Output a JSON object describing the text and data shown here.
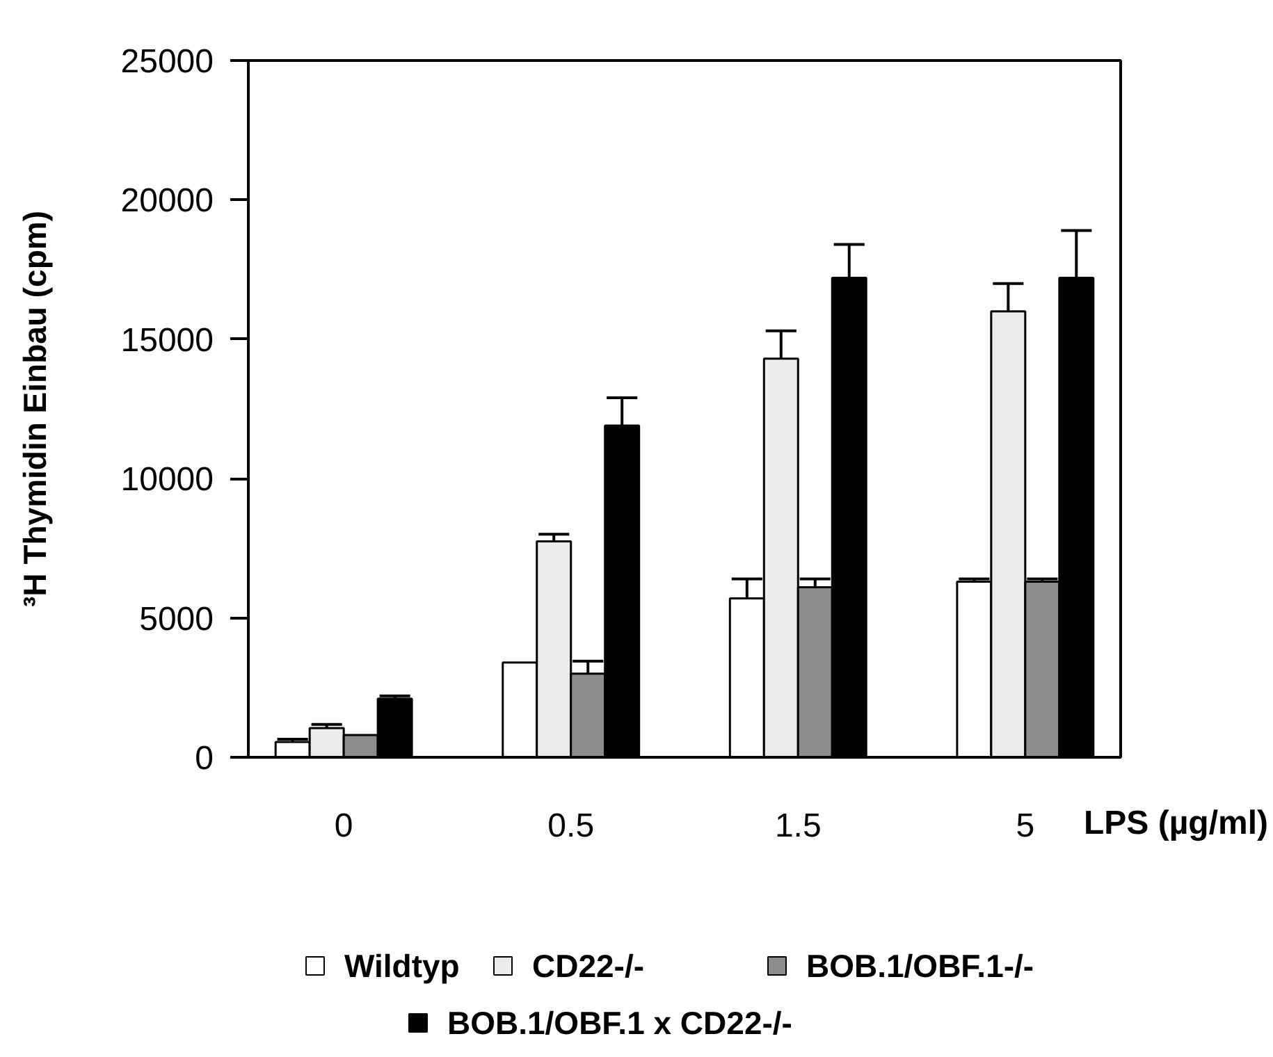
{
  "chart_data": {
    "type": "bar",
    "ylabel": "³H Thymidin Einbau (cpm)",
    "xlabel": "LPS (µg/ml)",
    "categories": [
      "0",
      "0.5",
      "1.5",
      "5"
    ],
    "ylim": [
      0,
      25000
    ],
    "yticks": [
      0,
      5000,
      10000,
      15000,
      20000,
      25000
    ],
    "legend": "bottom",
    "series": [
      {
        "name": "Wildtyp",
        "color": "#ffffff",
        "values": [
          550,
          3400,
          5700,
          6300
        ],
        "errors": [
          [
            550,
            650
          ],
          null,
          [
            5700,
            6400
          ],
          [
            6300,
            6400
          ]
        ]
      },
      {
        "name": "CD22-/-",
        "color": "#ececec",
        "values": [
          1050,
          7750,
          14300,
          16000
        ],
        "errors": [
          [
            1050,
            1180
          ],
          [
            7750,
            8000
          ],
          [
            14300,
            15300
          ],
          [
            16000,
            17000
          ]
        ]
      },
      {
        "name": "BOB.1/OBF.1-/-",
        "color": "#8c8c8c",
        "values": [
          800,
          3000,
          6100,
          6300
        ],
        "errors": [
          null,
          [
            3000,
            3450
          ],
          [
            6100,
            6400
          ],
          [
            6300,
            6400
          ]
        ]
      },
      {
        "name": "BOB.1/OBF.1 x CD22-/-",
        "color": "#000000",
        "values": [
          2100,
          11900,
          17200,
          17200
        ],
        "errors": [
          [
            2100,
            2200
          ],
          [
            11900,
            12900
          ],
          [
            17200,
            18400
          ],
          [
            17200,
            18900
          ]
        ]
      }
    ]
  }
}
